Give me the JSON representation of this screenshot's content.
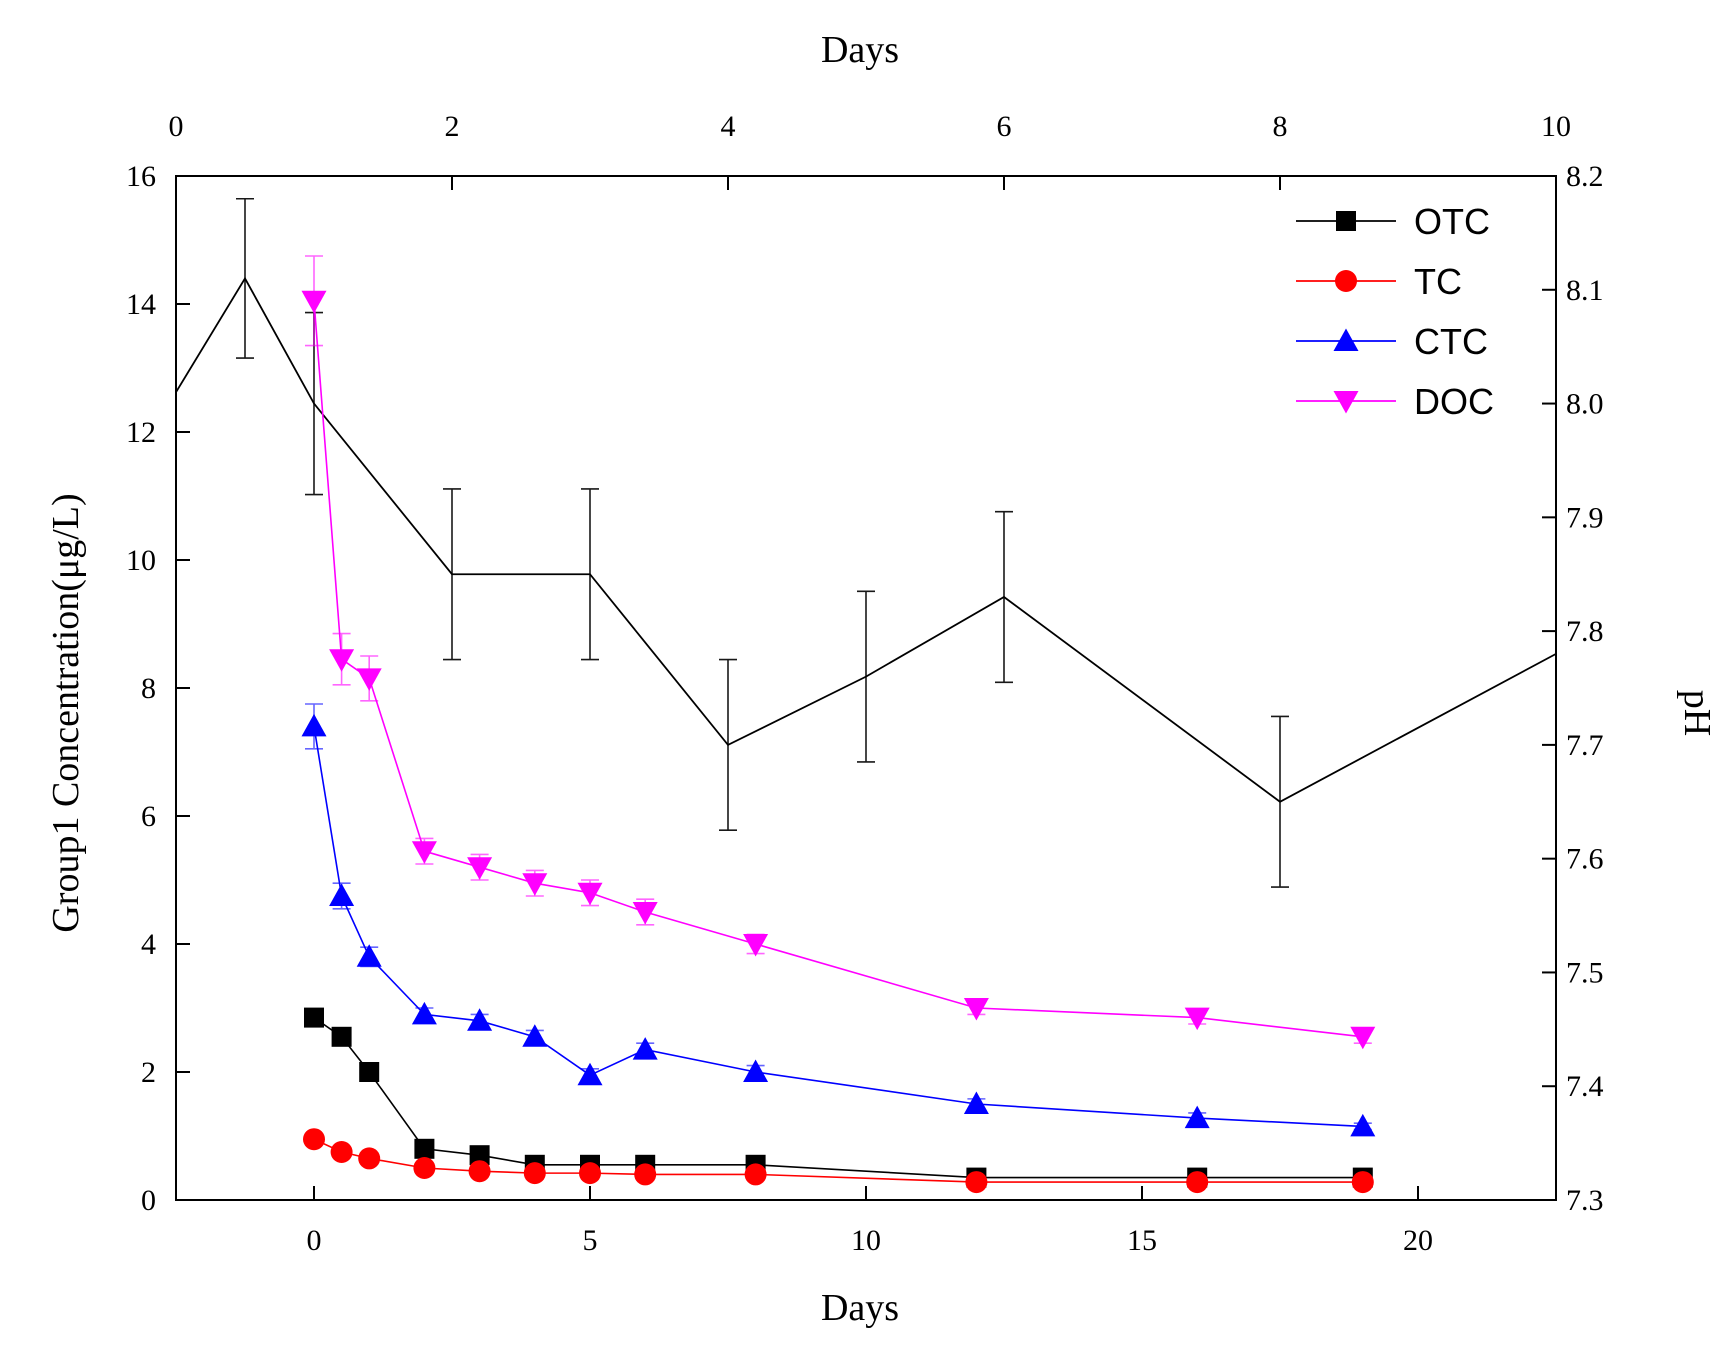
{
  "chart_data": {
    "type": "line",
    "title": "",
    "xlabel_bottom": "Days",
    "xlabel_top": "Days",
    "ylabel_left": "Group1  Concentration(μg/L)",
    "ylabel_right": "pH",
    "xlim_bottom": [
      -2.5,
      22.5
    ],
    "xticks_bottom": [
      0,
      5,
      10,
      15,
      20
    ],
    "xlim_top": [
      0,
      10
    ],
    "xticks_top": [
      0,
      2,
      4,
      6,
      8,
      10
    ],
    "ylim_left": [
      0,
      16
    ],
    "yticks_left": [
      0,
      2,
      4,
      6,
      8,
      10,
      12,
      14,
      16
    ],
    "ylim_right": [
      7.3,
      8.2
    ],
    "yticks_right": [
      "7.3",
      "7.4",
      "7.5",
      "7.6",
      "7.7",
      "7.8",
      "7.9",
      "8.0",
      "8.1",
      "8.2"
    ],
    "legend_position": "top-right",
    "series": [
      {
        "name": "OTC",
        "color": "#000000",
        "marker": "square",
        "axis": "bottom-left",
        "x": [
          0,
          0.5,
          1,
          2,
          3,
          4,
          5,
          6,
          8,
          12,
          16,
          19
        ],
        "y": [
          2.85,
          2.55,
          2.0,
          0.8,
          0.7,
          0.55,
          0.55,
          0.55,
          0.55,
          0.35,
          0.35,
          0.35
        ],
        "err": [
          0.1,
          0.1,
          0.1,
          0.05,
          0.05,
          0.05,
          0.05,
          0.05,
          0.05,
          0.05,
          0.05,
          0.05
        ]
      },
      {
        "name": "TC",
        "color": "#ff0000",
        "marker": "circle",
        "axis": "bottom-left",
        "x": [
          0,
          0.5,
          1,
          2,
          3,
          4,
          5,
          6,
          8,
          12,
          16,
          19
        ],
        "y": [
          0.95,
          0.75,
          0.65,
          0.5,
          0.45,
          0.42,
          0.42,
          0.4,
          0.4,
          0.28,
          0.28,
          0.28
        ],
        "err": [
          0.05,
          0.05,
          0.05,
          0.05,
          0.05,
          0.05,
          0.05,
          0.05,
          0.05,
          0.05,
          0.05,
          0.05
        ]
      },
      {
        "name": "CTC",
        "color": "#0000ff",
        "marker": "triangle-up",
        "axis": "bottom-left",
        "x": [
          0,
          0.5,
          1,
          2,
          3,
          4,
          5,
          6,
          8,
          12,
          16,
          19
        ],
        "y": [
          7.4,
          4.75,
          3.8,
          2.9,
          2.8,
          2.55,
          1.95,
          2.35,
          2.0,
          1.5,
          1.28,
          1.15
        ],
        "err": [
          0.35,
          0.2,
          0.15,
          0.1,
          0.1,
          0.1,
          0.1,
          0.1,
          0.1,
          0.08,
          0.08,
          0.05
        ]
      },
      {
        "name": "DOC",
        "color": "#ff00ff",
        "marker": "triangle-down",
        "axis": "bottom-left",
        "x": [
          0,
          0.5,
          1,
          2,
          3,
          4,
          5,
          6,
          8,
          12,
          16,
          19
        ],
        "y": [
          14.05,
          8.45,
          8.15,
          5.45,
          5.2,
          4.95,
          4.8,
          4.5,
          4.0,
          3.0,
          2.85,
          2.55
        ],
        "err": [
          0.7,
          0.4,
          0.35,
          0.2,
          0.2,
          0.2,
          0.2,
          0.2,
          0.15,
          0.1,
          0.1,
          0.1
        ]
      },
      {
        "name": "pH",
        "color": "#000000",
        "marker": "none",
        "axis": "top-right",
        "x": [
          0,
          0.5,
          1,
          2,
          3,
          4,
          5,
          6,
          8,
          10
        ],
        "y": [
          8.01,
          8.11,
          8.0,
          7.85,
          7.85,
          7.7,
          7.76,
          7.83,
          7.65,
          7.78
        ],
        "err": [
          0,
          0.07,
          0.08,
          0.075,
          0.075,
          0.075,
          0.075,
          0.075,
          0.075,
          0
        ],
        "show_in_legend": false
      }
    ]
  }
}
